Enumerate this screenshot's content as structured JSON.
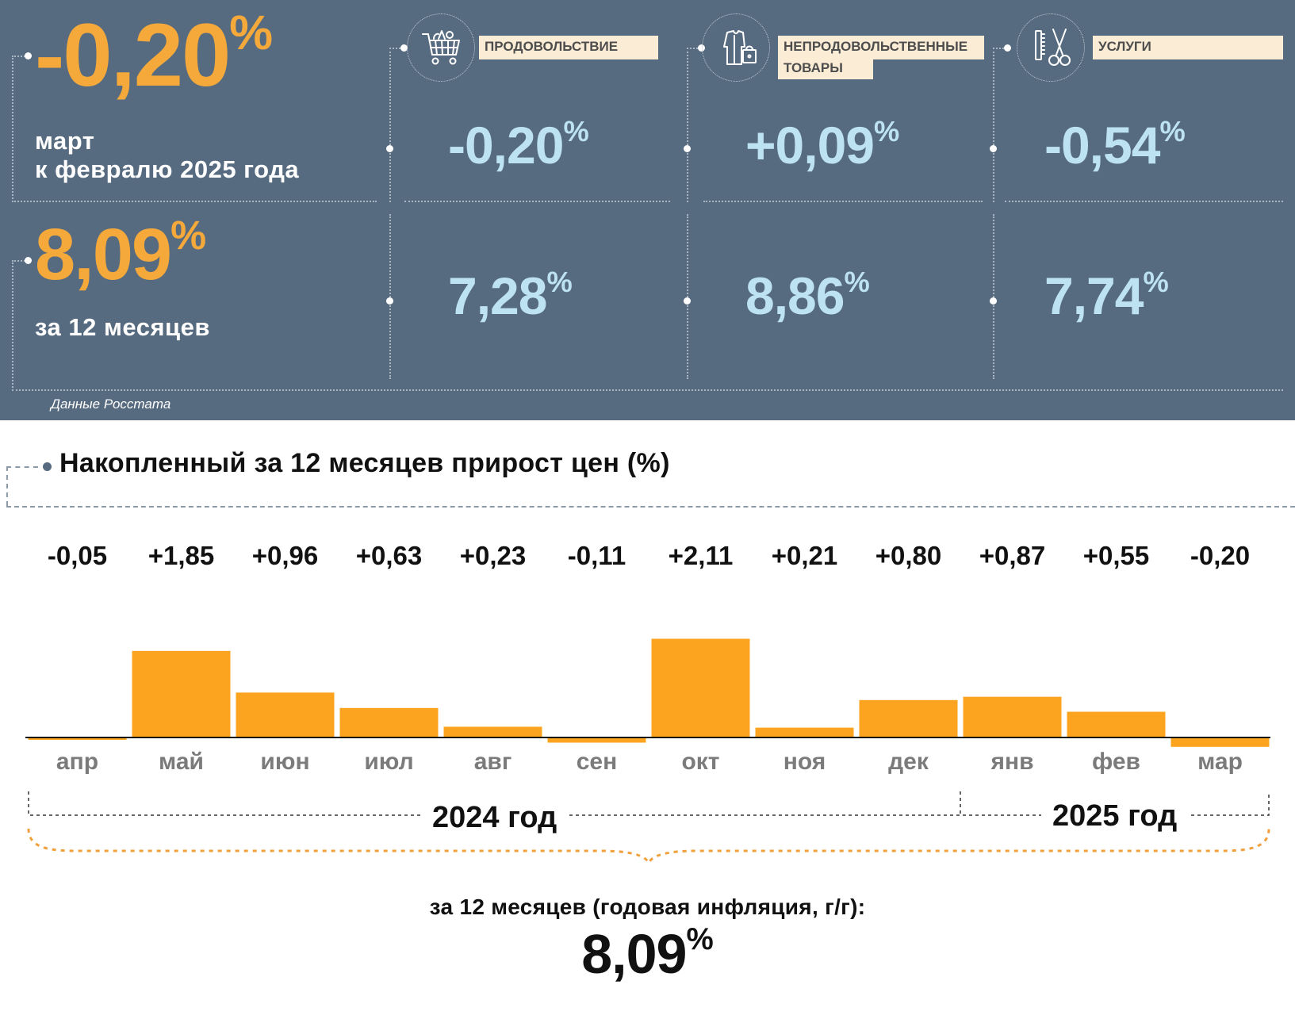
{
  "overall": {
    "monthly": {
      "number": "-0,20",
      "unit": "%",
      "caption_line1": "март",
      "caption_line2": "к февралю 2025 года"
    },
    "annual": {
      "number": "8,09",
      "unit": "%",
      "caption": "за 12 месяцев"
    }
  },
  "categories": [
    {
      "label_line1": "ПРОДОВОЛЬСТВИЕ",
      "label_line2": "",
      "icon": "shopping-cart-icon",
      "monthly": "-0,20",
      "annual": "7,28",
      "unit": "%"
    },
    {
      "label_line1": "НЕПРОДОВОЛЬСТВЕННЫЕ",
      "label_line2": "ТОВАРЫ",
      "icon": "clothes-bag-icon",
      "monthly": "+0,09",
      "annual": "8,86",
      "unit": "%"
    },
    {
      "label_line1": "УСЛУГИ",
      "label_line2": "",
      "icon": "scissors-comb-icon",
      "monthly": "-0,54",
      "annual": "7,74",
      "unit": "%"
    }
  ],
  "source_note": "Данные Росстата",
  "chart_data": {
    "type": "bar",
    "title": "Накопленный за 12 месяцев прирост цен (%)",
    "categories": [
      "апр",
      "май",
      "июн",
      "июл",
      "авг",
      "сен",
      "окт",
      "ноя",
      "дек",
      "янв",
      "фев",
      "мар"
    ],
    "values": [
      -0.05,
      1.85,
      0.96,
      0.63,
      0.23,
      -0.11,
      2.11,
      0.21,
      0.8,
      0.87,
      0.55,
      -0.2
    ],
    "value_labels": [
      "-0,05",
      "+1,85",
      "+0,96",
      "+0,63",
      "+0,23",
      "-0,11",
      "+2,11",
      "+0,21",
      "+0,80",
      "+0,87",
      "+0,55",
      "-0,20"
    ],
    "year_groups": [
      {
        "label": "2024 год",
        "count": 9
      },
      {
        "label": "2025 год",
        "count": 3
      }
    ],
    "bar_color": "#fca41f",
    "ylim": [
      -0.2,
      2.11
    ]
  },
  "summary": {
    "caption": "за 12 месяцев (годовая инфляция, г/г):",
    "number": "8,09",
    "unit": "%"
  },
  "colors": {
    "panel_bg": "#576b80",
    "accent_orange": "#f5a93a",
    "value_blue": "#bde2f2",
    "label_bg": "#fbecd6"
  }
}
